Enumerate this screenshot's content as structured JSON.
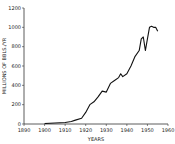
{
  "chart_data": {
    "type": "line",
    "x_label": "YEARS",
    "y_label": "MILLIONS OF BBLS./YR",
    "x": [
      1900,
      1905,
      1910,
      1913,
      1915,
      1918,
      1920,
      1922,
      1924,
      1926,
      1928,
      1930,
      1932,
      1934,
      1936,
      1937,
      1938,
      1940,
      1942,
      1944,
      1946,
      1947,
      1948,
      1949,
      1950,
      1951,
      1952,
      1953,
      1954,
      1955
    ],
    "values": [
      5,
      10,
      15,
      25,
      40,
      60,
      120,
      200,
      230,
      280,
      340,
      330,
      420,
      450,
      480,
      520,
      490,
      520,
      600,
      700,
      760,
      880,
      900,
      760,
      880,
      1000,
      1010,
      1000,
      1000,
      960
    ],
    "color": "#111111",
    "xlim": [
      1890,
      1960
    ],
    "xticks": [
      1890,
      1900,
      1910,
      1920,
      1930,
      1940,
      1950,
      1960
    ],
    "ylim": [
      0,
      1200
    ],
    "yticks": [
      0,
      200,
      400,
      600,
      800,
      1000,
      1200
    ],
    "grid": false
  }
}
